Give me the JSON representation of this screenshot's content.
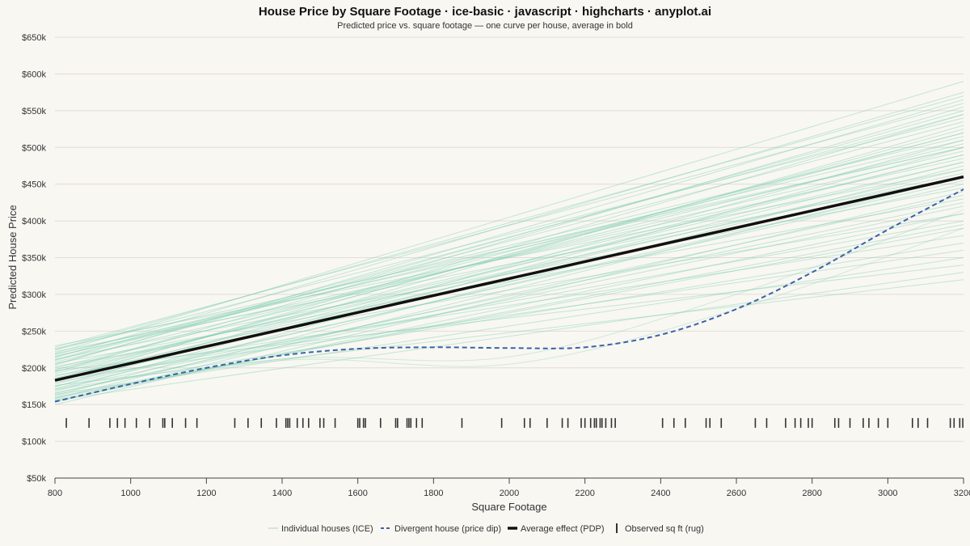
{
  "chart_data": {
    "type": "line",
    "title": "House Price by Square Footage · ice-basic · javascript · highcharts · anyplot.ai",
    "subtitle": "Predicted price vs. square footage — one curve per house, average in bold",
    "xlabel": "Square Footage",
    "ylabel": "Predicted House Price",
    "xlim": [
      800,
      3200
    ],
    "ylim": [
      50000,
      650000
    ],
    "x_ticks": [
      "800",
      "1000",
      "1200",
      "1400",
      "1600",
      "1800",
      "2000",
      "2200",
      "2400",
      "2600",
      "2800",
      "3000",
      "3200"
    ],
    "y_ticks": [
      "$50k",
      "$100k",
      "$150k",
      "$200k",
      "$250k",
      "$300k",
      "$350k",
      "$400k",
      "$450k",
      "$500k",
      "$550k",
      "$600k",
      "$650k"
    ],
    "grid": true,
    "legend_position": "bottom-center",
    "colors": {
      "ice": "#7fcfb1",
      "divergent": "#3a62a8",
      "pdp": "#111111",
      "rug": "#333333",
      "grid": "#e0ddd6",
      "axis": "#444444"
    },
    "series": [
      {
        "name": "Individual houses (ICE)",
        "style": "thin translucent lines",
        "note_count": 60,
        "lines": [
          [
            [
              800,
              150000
            ],
            [
              3200,
              440000
            ]
          ],
          [
            [
              800,
              153000
            ],
            [
              3200,
              460000
            ]
          ],
          [
            [
              800,
              156000
            ],
            [
              3200,
              330000
            ]
          ],
          [
            [
              800,
              158000
            ],
            [
              3200,
              475000
            ]
          ],
          [
            [
              800,
              160000
            ],
            [
              3200,
              390000
            ]
          ],
          [
            [
              800,
              162000
            ],
            [
              3200,
              500000
            ]
          ],
          [
            [
              800,
              164000
            ],
            [
              3200,
              350000
            ]
          ],
          [
            [
              800,
              166000
            ],
            [
              3200,
              420000
            ]
          ],
          [
            [
              800,
              168000
            ],
            [
              3200,
              510000
            ]
          ],
          [
            [
              800,
              170000
            ],
            [
              3200,
              370000
            ]
          ],
          [
            [
              800,
              172000
            ],
            [
              3200,
              455000
            ]
          ],
          [
            [
              800,
              174000
            ],
            [
              3200,
              530000
            ]
          ],
          [
            [
              800,
              176000
            ],
            [
              3200,
              320000
            ]
          ],
          [
            [
              800,
              178000
            ],
            [
              3200,
              480000
            ]
          ],
          [
            [
              800,
              180000
            ],
            [
              3200,
              400000
            ]
          ],
          [
            [
              800,
              182000
            ],
            [
              3200,
              545000
            ]
          ],
          [
            [
              800,
              184000
            ],
            [
              3200,
              360000
            ]
          ],
          [
            [
              800,
              186000
            ],
            [
              3200,
              470000
            ]
          ],
          [
            [
              800,
              188000
            ],
            [
              3200,
              520000
            ]
          ],
          [
            [
              800,
              190000
            ],
            [
              3200,
              380000
            ]
          ],
          [
            [
              800,
              192000
            ],
            [
              3200,
              490000
            ]
          ],
          [
            [
              800,
              194000
            ],
            [
              3200,
              555000
            ]
          ],
          [
            [
              800,
              196000
            ],
            [
              3200,
              340000
            ]
          ],
          [
            [
              800,
              198000
            ],
            [
              3200,
              465000
            ]
          ],
          [
            [
              800,
              200000
            ],
            [
              3200,
              505000
            ]
          ],
          [
            [
              800,
              202000
            ],
            [
              3200,
              410000
            ]
          ],
          [
            [
              800,
              204000
            ],
            [
              3200,
              565000
            ]
          ],
          [
            [
              800,
              206000
            ],
            [
              3200,
              430000
            ]
          ],
          [
            [
              800,
              208000
            ],
            [
              3200,
              495000
            ]
          ],
          [
            [
              800,
              210000
            ],
            [
              3200,
              535000
            ]
          ],
          [
            [
              800,
              212000
            ],
            [
              3200,
              445000
            ]
          ],
          [
            [
              800,
              214000
            ],
            [
              3200,
              575000
            ]
          ],
          [
            [
              800,
              216000
            ],
            [
              3200,
              485000
            ]
          ],
          [
            [
              800,
              218000
            ],
            [
              3200,
              515000
            ]
          ],
          [
            [
              800,
              220000
            ],
            [
              3200,
              590000
            ]
          ],
          [
            [
              800,
              222000
            ],
            [
              3200,
              460000
            ]
          ],
          [
            [
              800,
              224000
            ],
            [
              3200,
              540000
            ]
          ],
          [
            [
              800,
              226000
            ],
            [
              3200,
              500000
            ]
          ],
          [
            [
              800,
              228000
            ],
            [
              3200,
              560000
            ]
          ],
          [
            [
              800,
              230000
            ],
            [
              3200,
              470000
            ]
          ],
          [
            [
              800,
              155000
            ],
            [
              3200,
              410000
            ]
          ],
          [
            [
              800,
              165000
            ],
            [
              3200,
              435000
            ]
          ],
          [
            [
              800,
              175000
            ],
            [
              3200,
              450000
            ]
          ],
          [
            [
              800,
              185000
            ],
            [
              3200,
              525000
            ]
          ],
          [
            [
              800,
              195000
            ],
            [
              3200,
              480000
            ]
          ],
          [
            [
              800,
              205000
            ],
            [
              3200,
              550000
            ]
          ],
          [
            [
              800,
              215000
            ],
            [
              3200,
              510000
            ]
          ],
          [
            [
              800,
              225000
            ],
            [
              3200,
              570000
            ]
          ],
          [
            [
              800,
              159000
            ],
            [
              3200,
              395000
            ]
          ],
          [
            [
              800,
              171000
            ],
            [
              3200,
              425000
            ]
          ],
          [
            [
              800,
              183000
            ],
            [
              3200,
              490000
            ]
          ],
          [
            [
              800,
              197000
            ],
            [
              3200,
              520000
            ]
          ],
          [
            [
              800,
              211000
            ],
            [
              3200,
              545000
            ]
          ],
          [
            [
              800,
              219000
            ],
            [
              3200,
              500000
            ]
          ]
        ],
        "curved_lines": [
          [
            [
              800,
              157000
            ],
            [
              1400,
              210000
            ],
            [
              2000,
              205000
            ],
            [
              2600,
              280000
            ],
            [
              3200,
              390000
            ]
          ],
          [
            [
              800,
              162000
            ],
            [
              1400,
              212000
            ],
            [
              2000,
              215000
            ],
            [
              2600,
              300000
            ],
            [
              3200,
              415000
            ]
          ]
        ]
      },
      {
        "name": "Divergent house (price dip)",
        "style": "dashed",
        "x": [
          800,
          1000,
          1200,
          1400,
          1600,
          1800,
          2000,
          2200,
          2400,
          2600,
          2800,
          3000,
          3200
        ],
        "values": [
          154000,
          178000,
          200000,
          217000,
          226000,
          228000,
          227000,
          228000,
          245000,
          280000,
          330000,
          388000,
          443000
        ]
      },
      {
        "name": "Average effect (PDP)",
        "style": "bold",
        "x": [
          800,
          3200
        ],
        "values": [
          183000,
          460000
        ]
      },
      {
        "name": "Observed sq ft (rug)",
        "style": "rug",
        "values": [
          830,
          890,
          945,
          965,
          985,
          1015,
          1050,
          1085,
          1090,
          1110,
          1145,
          1175,
          1275,
          1310,
          1345,
          1385,
          1410,
          1415,
          1420,
          1440,
          1455,
          1470,
          1500,
          1510,
          1540,
          1600,
          1605,
          1615,
          1620,
          1660,
          1700,
          1705,
          1730,
          1735,
          1740,
          1755,
          1770,
          1875,
          1980,
          2040,
          2055,
          2100,
          2140,
          2155,
          2190,
          2200,
          2215,
          2225,
          2230,
          2240,
          2245,
          2255,
          2270,
          2280,
          2405,
          2435,
          2465,
          2520,
          2530,
          2560,
          2650,
          2680,
          2730,
          2755,
          2770,
          2790,
          2800,
          2860,
          2870,
          2900,
          2935,
          2950,
          2975,
          3000,
          3065,
          3080,
          3105,
          3165,
          3175,
          3190,
          3198
        ]
      }
    ]
  }
}
